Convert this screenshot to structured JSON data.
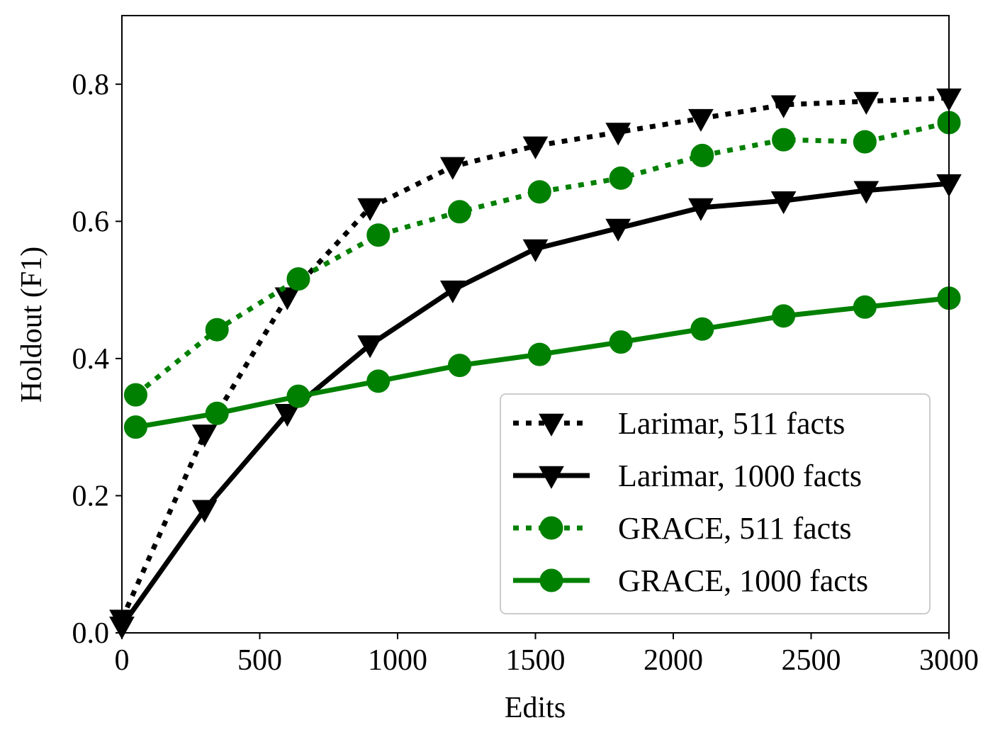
{
  "chart_data": {
    "type": "line",
    "xlabel": "Edits",
    "ylabel": "Holdout (F1)",
    "xlim": [
      0,
      3000
    ],
    "ylim": [
      0,
      0.9
    ],
    "xticks": [
      0,
      500,
      1000,
      1500,
      2000,
      2500,
      3000
    ],
    "xtick_labels": [
      "0",
      "500",
      "1000",
      "1500",
      "2000",
      "2500",
      "3000"
    ],
    "yticks": [
      0.0,
      0.2,
      0.4,
      0.6,
      0.8
    ],
    "ytick_labels": [
      "0.0",
      "0.2",
      "0.4",
      "0.6",
      "0.8"
    ],
    "grid": false,
    "legend_position": "lower-right",
    "series": [
      {
        "name": "Larimar, 511 facts",
        "color": "#000000",
        "line_style": "dotted",
        "marker": "triangle-down",
        "x": [
          0,
          300,
          600,
          900,
          1200,
          1500,
          1800,
          2100,
          2400,
          2700,
          3000
        ],
        "y": [
          0.02,
          0.29,
          0.49,
          0.62,
          0.68,
          0.71,
          0.73,
          0.75,
          0.77,
          0.775,
          0.78
        ]
      },
      {
        "name": "Larimar, 1000 facts",
        "color": "#000000",
        "line_style": "solid",
        "marker": "triangle-down",
        "x": [
          0,
          300,
          600,
          900,
          1200,
          1500,
          1800,
          2100,
          2400,
          2700,
          3000
        ],
        "y": [
          0.01,
          0.18,
          0.32,
          0.42,
          0.5,
          0.56,
          0.59,
          0.62,
          0.63,
          0.645,
          0.655
        ]
      },
      {
        "name": "GRACE, 511 facts",
        "color": "#008000",
        "line_style": "dotted",
        "marker": "circle",
        "x": [
          50,
          345,
          640,
          930,
          1225,
          1515,
          1810,
          2105,
          2400,
          2695,
          3000
        ],
        "y": [
          0.347,
          0.442,
          0.516,
          0.58,
          0.614,
          0.643,
          0.663,
          0.696,
          0.719,
          0.716,
          0.744
        ]
      },
      {
        "name": "GRACE, 1000 facts",
        "color": "#008000",
        "line_style": "solid",
        "marker": "circle",
        "x": [
          50,
          345,
          640,
          930,
          1225,
          1515,
          1810,
          2105,
          2400,
          2695,
          3000
        ],
        "y": [
          0.3,
          0.32,
          0.345,
          0.367,
          0.39,
          0.406,
          0.424,
          0.443,
          0.462,
          0.475,
          0.488
        ]
      }
    ]
  }
}
